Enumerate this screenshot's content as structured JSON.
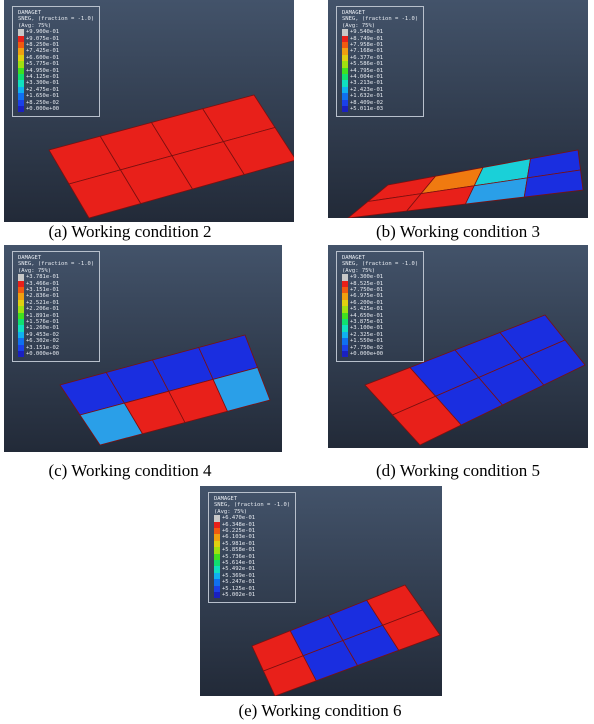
{
  "panels": [
    {
      "legend": {
        "title": [
          "DAMAGET",
          "SNEG, (fraction = -1.0)",
          "(Avg: 75%)"
        ],
        "values": [
          "+9.900e-01",
          "+9.075e-01",
          "+8.250e-01",
          "+7.425e-01",
          "+6.600e-01",
          "+5.775e-01",
          "+4.950e-01",
          "+4.125e-01",
          "+3.300e-01",
          "+2.475e-01",
          "+1.650e-01",
          "+8.250e-02",
          "+0.000e+00"
        ]
      },
      "caption": "(a) Working condition 2"
    },
    {
      "legend": {
        "title": [
          "DAMAGET",
          "SNEG, (fraction = -1.0)",
          "(Avg: 75%)"
        ],
        "values": [
          "+9.540e-01",
          "+8.749e-01",
          "+7.958e-01",
          "+7.168e-01",
          "+6.377e-01",
          "+5.586e-01",
          "+4.795e-01",
          "+4.004e-01",
          "+3.213e-01",
          "+2.423e-01",
          "+1.632e-01",
          "+8.409e-02",
          "+5.011e-03"
        ]
      },
      "caption": "(b) Working condition 3"
    },
    {
      "legend": {
        "title": [
          "DAMAGET",
          "SNEG, (fraction = -1.0)",
          "(Avg: 75%)"
        ],
        "values": [
          "+3.781e-01",
          "+3.466e-01",
          "+3.151e-01",
          "+2.836e-01",
          "+2.521e-01",
          "+2.206e-01",
          "+1.891e-01",
          "+1.576e-01",
          "+1.260e-01",
          "+9.453e-02",
          "+6.302e-02",
          "+3.151e-02",
          "+0.000e+00"
        ]
      },
      "caption": "(c) Working condition 4"
    },
    {
      "legend": {
        "title": [
          "DAMAGET",
          "SNEG, (fraction = -1.0)",
          "(Avg: 75%)"
        ],
        "values": [
          "+9.300e-01",
          "+8.525e-01",
          "+7.750e-01",
          "+6.975e-01",
          "+6.200e-01",
          "+5.425e-01",
          "+4.650e-01",
          "+3.875e-01",
          "+3.100e-01",
          "+2.325e-01",
          "+1.550e-01",
          "+7.750e-02",
          "+0.000e+00"
        ]
      },
      "caption": "(d) Working condition 5"
    },
    {
      "legend": {
        "title": [
          "DAMAGET",
          "SNEG, (fraction = -1.0)",
          "(Avg: 75%)"
        ],
        "values": [
          "+6.470e-01",
          "+6.348e-01",
          "+6.225e-01",
          "+6.103e-01",
          "+5.981e-01",
          "+5.858e-01",
          "+5.736e-01",
          "+5.614e-01",
          "+5.492e-01",
          "+5.369e-01",
          "+5.247e-01",
          "+5.125e-01",
          "+5.002e-01"
        ]
      },
      "caption": "(e) Working condition 6"
    }
  ]
}
